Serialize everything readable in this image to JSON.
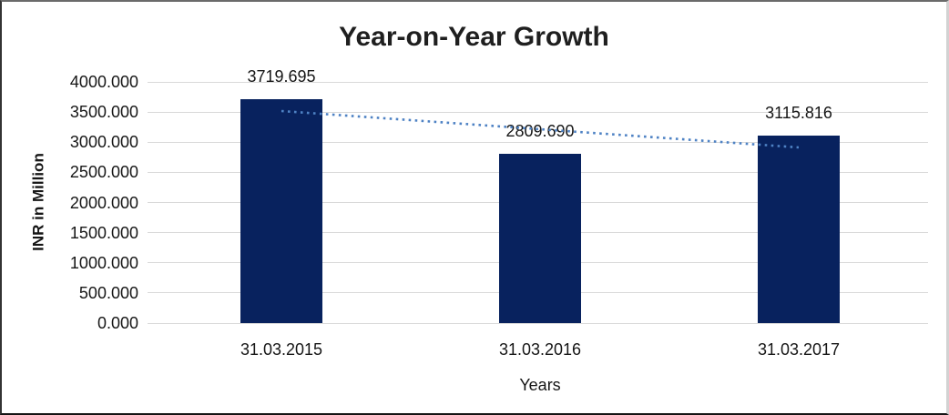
{
  "chart_data": {
    "type": "bar",
    "title": "Year-on-Year Growth",
    "categories": [
      "31.03.2015",
      "31.03.2016",
      "31.03.2017"
    ],
    "values": [
      3719.695,
      2809.69,
      3115.816
    ],
    "data_labels": [
      "3719.695",
      "2809.690",
      "3115.816"
    ],
    "xlabel": "Years",
    "ylabel": "INR in Million",
    "ylim": [
      0,
      4000
    ],
    "ytick_step": 500,
    "ytick_labels": [
      "0.000",
      "500.000",
      "1000.000",
      "1500.000",
      "2000.000",
      "2500.000",
      "3000.000",
      "3500.000",
      "4000.000"
    ],
    "grid": true,
    "legend": false,
    "bar_color": "#08225E",
    "gridline_color": "#D9D9D9",
    "text_color": "#161616",
    "trendline": {
      "type": "linear",
      "style": "dotted",
      "color": "#4E82C4"
    }
  }
}
